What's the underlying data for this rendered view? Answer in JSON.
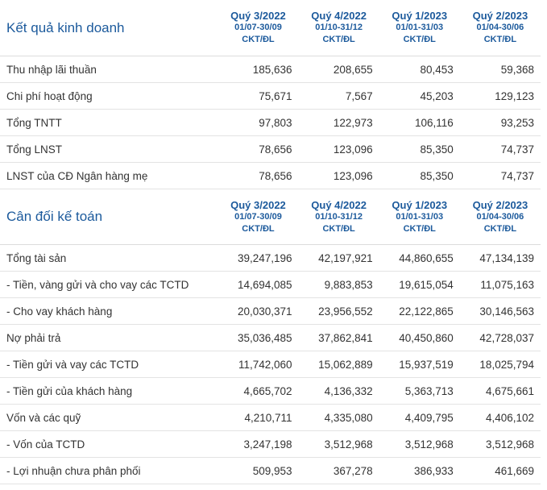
{
  "income": {
    "title": "Kết quả kinh doanh",
    "periods": [
      {
        "quarter": "Quý 3/2022",
        "dates": "01/07-30/09",
        "unit": "CKT/ĐL"
      },
      {
        "quarter": "Quý 4/2022",
        "dates": "01/10-31/12",
        "unit": "CKT/ĐL"
      },
      {
        "quarter": "Quý 1/2023",
        "dates": "01/01-31/03",
        "unit": "CKT/ĐL"
      },
      {
        "quarter": "Quý 2/2023",
        "dates": "01/04-30/06",
        "unit": "CKT/ĐL"
      }
    ],
    "rows": [
      {
        "label": "Thu nhập lãi thuần",
        "values": [
          "185,636",
          "208,655",
          "80,453",
          "59,368"
        ]
      },
      {
        "label": "Chi phí hoạt động",
        "values": [
          "75,671",
          "7,567",
          "45,203",
          "129,123"
        ]
      },
      {
        "label": "Tổng TNTT",
        "values": [
          "97,803",
          "122,973",
          "106,116",
          "93,253"
        ]
      },
      {
        "label": "Tổng LNST",
        "values": [
          "78,656",
          "123,096",
          "85,350",
          "74,737"
        ]
      },
      {
        "label": "LNST của CĐ Ngân hàng mẹ",
        "values": [
          "78,656",
          "123,096",
          "85,350",
          "74,737"
        ]
      }
    ]
  },
  "balance": {
    "title": "Cân đối kế toán",
    "periods": [
      {
        "quarter": "Quý 3/2022",
        "dates": "01/07-30/09",
        "unit": "CKT/ĐL"
      },
      {
        "quarter": "Quý 4/2022",
        "dates": "01/10-31/12",
        "unit": "CKT/ĐL"
      },
      {
        "quarter": "Quý 1/2023",
        "dates": "01/01-31/03",
        "unit": "CKT/ĐL"
      },
      {
        "quarter": "Quý 2/2023",
        "dates": "01/04-30/06",
        "unit": "CKT/ĐL"
      }
    ],
    "rows": [
      {
        "label": "Tổng tài sản",
        "values": [
          "39,247,196",
          "42,197,921",
          "44,860,655",
          "47,134,139"
        ]
      },
      {
        "label": "- Tiền, vàng gửi và cho vay các TCTD",
        "values": [
          "14,694,085",
          "9,883,853",
          "19,615,054",
          "11,075,163"
        ]
      },
      {
        "label": "- Cho vay khách hàng",
        "values": [
          "20,030,371",
          "23,956,552",
          "22,122,865",
          "30,146,563"
        ]
      },
      {
        "label": "Nợ phải trả",
        "values": [
          "35,036,485",
          "37,862,841",
          "40,450,860",
          "42,728,037"
        ]
      },
      {
        "label": "- Tiền gửi và vay các TCTD",
        "values": [
          "11,742,060",
          "15,062,889",
          "15,937,519",
          "18,025,794"
        ]
      },
      {
        "label": "- Tiền gửi của khách hàng",
        "values": [
          "4,665,702",
          "4,136,332",
          "5,363,713",
          "4,675,661"
        ]
      },
      {
        "label": "Vốn và các quỹ",
        "values": [
          "4,210,711",
          "4,335,080",
          "4,409,795",
          "4,406,102"
        ]
      },
      {
        "label": "- Vốn của TCTD",
        "values": [
          "3,247,198",
          "3,512,968",
          "3,512,968",
          "3,512,968"
        ]
      },
      {
        "label": "- Lợi nhuận chưa phân phối",
        "values": [
          "509,953",
          "367,278",
          "386,933",
          "461,669"
        ]
      }
    ]
  }
}
